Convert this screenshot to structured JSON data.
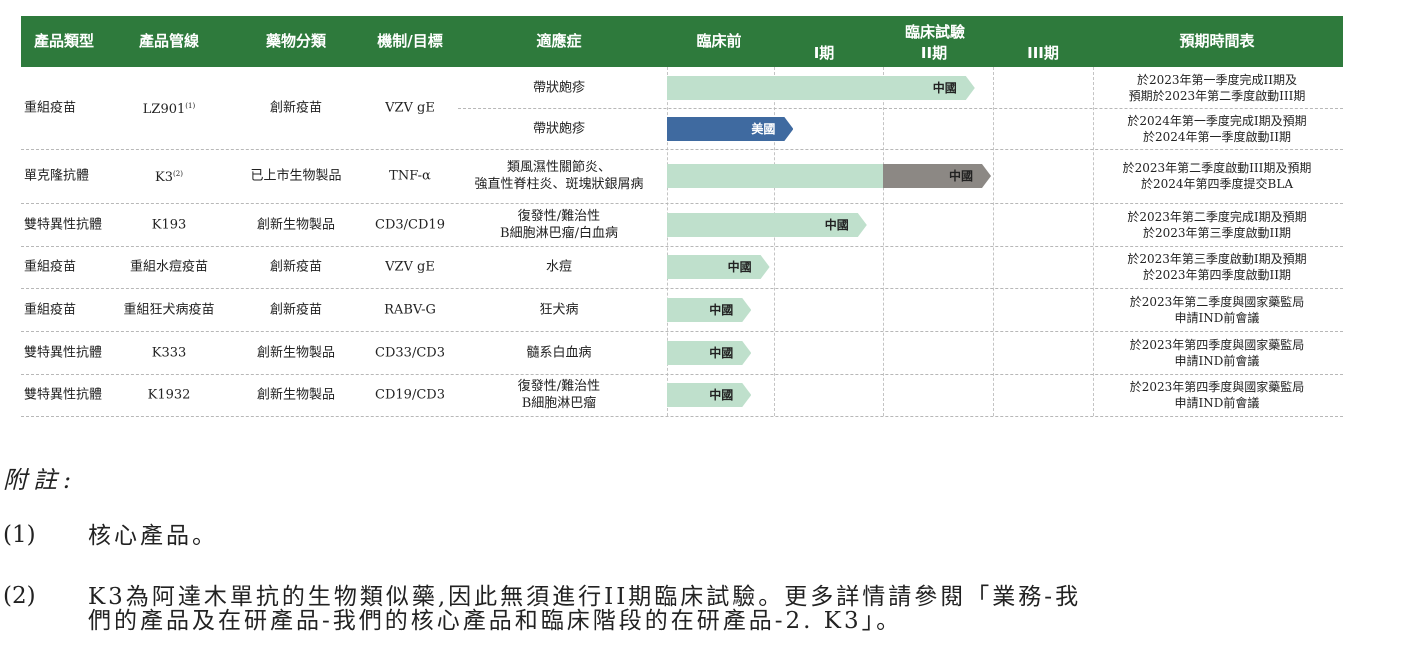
{
  "header": {
    "product_type": "產品類型",
    "pipeline": "產品管線",
    "drug_class": "藥物分類",
    "mechanism": "機制/目標",
    "indication": "適應症",
    "preclinical": "臨床前",
    "clinical_trials": "臨床試驗",
    "phase1": "I期",
    "phase2": "II期",
    "phase3": "III期",
    "timeline": "預期時間表"
  },
  "rows": [
    {
      "type": "重組疫苗",
      "pipeline": "LZ901",
      "sup": "(1)",
      "class": "創新疫苗",
      "target": "VZV gE",
      "indication": [
        "帶狀皰疹"
      ],
      "region": "中國",
      "progress": 2.85,
      "color": "#bfe0cc",
      "schedule": [
        "於2023年第一季度完成II期及",
        "預期於2023年第二季度啟動III期"
      ]
    },
    {
      "type": "",
      "pipeline": "",
      "sup": "",
      "class": "",
      "target": "",
      "indication": [
        "帶狀皰疹"
      ],
      "region": "美國",
      "progress": 1.17,
      "color": "#3f6aa0",
      "label_color": "#ffffff",
      "schedule": [
        "於2024年第一季度完成I期及預期",
        "於2024年第一季度啟動II期"
      ]
    },
    {
      "type": "單克隆抗體",
      "pipeline": "K3",
      "sup": "(2)",
      "class": "已上市生物製品",
      "target": "TNF-α",
      "indication": [
        "類風濕性關節炎、",
        "強直性脊柱炎、斑塊狀銀屑病"
      ],
      "region": "中國",
      "progress": 3.0,
      "color": "#bfe0cc",
      "gray_from": 2.0,
      "gray_color": "#8c8884",
      "schedule": [
        "於2023年第二季度啟動III期及預期",
        "於2024年第四季度提交BLA"
      ]
    },
    {
      "type": "雙特異性抗體",
      "pipeline": "K193",
      "sup": "",
      "class": "創新生物製品",
      "target": "CD3/CD19",
      "indication": [
        "復發性/難治性",
        "B細胞淋巴瘤/白血病"
      ],
      "region": "中國",
      "progress": 1.85,
      "color": "#bfe0cc",
      "schedule": [
        "於2023年第二季度完成I期及預期",
        "於2023年第三季度啟動II期"
      ]
    },
    {
      "type": "重組疫苗",
      "pipeline": "重組水痘疫苗",
      "sup": "",
      "class": "創新疫苗",
      "target": "VZV gE",
      "indication": [
        "水痘"
      ],
      "region": "中國",
      "progress": 0.95,
      "color": "#bfe0cc",
      "schedule": [
        "於2023年第三季度啟動I期及預期",
        "於2023年第四季度啟動II期"
      ]
    },
    {
      "type": "重組疫苗",
      "pipeline": "重組狂犬病疫苗",
      "sup": "",
      "class": "創新疫苗",
      "target": "RABV-G",
      "indication": [
        "狂犬病"
      ],
      "region": "中國",
      "progress": 0.78,
      "color": "#bfe0cc",
      "schedule": [
        "於2023年第二季度與國家藥監局",
        "申請IND前會議"
      ]
    },
    {
      "type": "雙特異性抗體",
      "pipeline": "K333",
      "sup": "",
      "class": "創新生物製品",
      "target": "CD33/CD3",
      "indication": [
        "髓系白血病"
      ],
      "region": "中國",
      "progress": 0.78,
      "color": "#bfe0cc",
      "schedule": [
        "於2023年第四季度與國家藥監局",
        "申請IND前會議"
      ]
    },
    {
      "type": "雙特異性抗體",
      "pipeline": "K1932",
      "sup": "",
      "class": "創新生物製品",
      "target": "CD19/CD3",
      "indication": [
        "復發性/難治性",
        "B細胞淋巴瘤"
      ],
      "region": "中國",
      "progress": 0.78,
      "color": "#bfe0cc",
      "schedule": [
        "於2023年第四季度與國家藥監局",
        "申請IND前會議"
      ]
    }
  ],
  "notes": {
    "title": "附註:",
    "items": [
      {
        "num": "(1)",
        "lines": [
          "核心產品。"
        ]
      },
      {
        "num": "(2)",
        "lines": [
          "K3為阿達木單抗的生物類似藥,因此無須進行II期臨床試驗。更多詳情請參閱「業務-我",
          "們的產品及在研產品-我們的核心產品和臨床階段的在研產品-2. K3」。"
        ]
      }
    ]
  }
}
